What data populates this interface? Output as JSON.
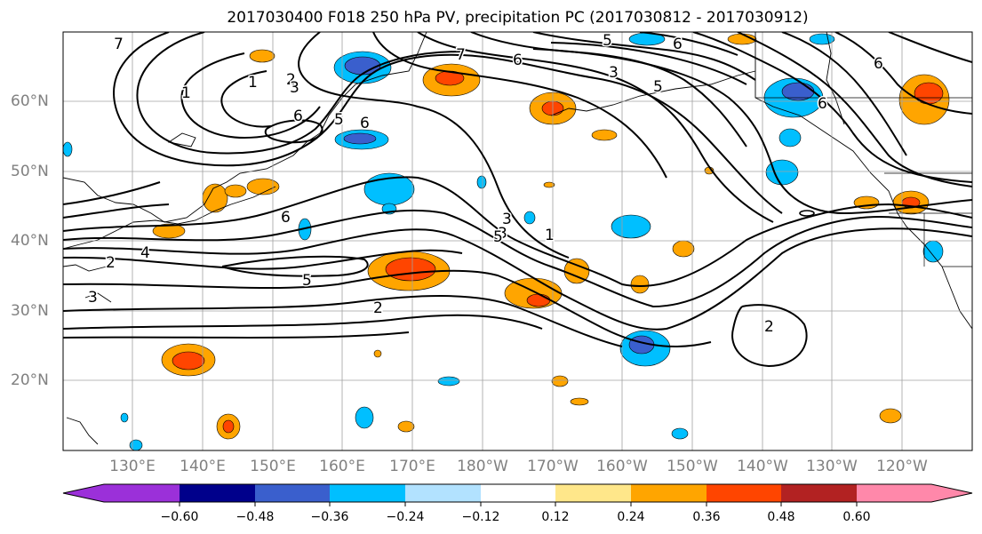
{
  "title": "2017030400 F018 250 hPa PV, precipitation PC (2017030812 - 2017030912)",
  "lat_labels": [
    "60°N",
    "50°N",
    "40°N",
    "30°N",
    "20°N"
  ],
  "lon_labels": [
    "130°E",
    "140°E",
    "150°E",
    "160°E",
    "170°E",
    "180°W",
    "170°W",
    "160°W",
    "150°W",
    "140°W",
    "130°W",
    "120°W"
  ],
  "contour_labels": [
    "7",
    "6",
    "5",
    "2",
    "1",
    "3",
    "7",
    "6",
    "5",
    "3",
    "6",
    "5",
    "6",
    "1",
    "6",
    "4",
    "3",
    "2",
    "3",
    "5",
    "6",
    "2",
    "5",
    "3",
    "1",
    "2",
    "6"
  ],
  "colorbar": {
    "tick_labels": [
      "−0.60",
      "−0.48",
      "−0.36",
      "−0.24",
      "−0.12",
      "0.12",
      "0.24",
      "0.36",
      "0.48",
      "0.60"
    ],
    "colors": [
      "#9b30d9",
      "#00008b",
      "#3a5fcd",
      "#00bfff",
      "#b2e2ff",
      "#ffffff",
      "#ffe78a",
      "#ffa500",
      "#ff4500",
      "#b22222",
      "#ff88aa"
    ]
  },
  "colors": {
    "contour": "#000000",
    "coastline": "#000000",
    "grid": "#a0a0a0",
    "axis_label": "#808080"
  }
}
